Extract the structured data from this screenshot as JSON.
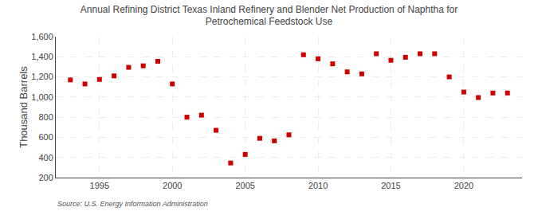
{
  "chart_data": {
    "type": "scatter",
    "title": "Annual Refining District Texas Inland Refinery and Blender Net Production of Naphtha for\nPetrochemical Feedstock Use",
    "ylabel": "Thousand Barrels",
    "source": "Source: U.S. Energy Information Administration",
    "x": [
      1993,
      1994,
      1995,
      1996,
      1997,
      1998,
      1999,
      2000,
      2001,
      2002,
      2003,
      2004,
      2005,
      2006,
      2007,
      2008,
      2009,
      2010,
      2011,
      2012,
      2013,
      2014,
      2015,
      2016,
      2017,
      2018,
      2019,
      2020,
      2021,
      2022,
      2023
    ],
    "values": [
      1170,
      1130,
      1175,
      1210,
      1295,
      1310,
      1355,
      1130,
      800,
      820,
      670,
      345,
      430,
      590,
      565,
      625,
      1420,
      1380,
      1330,
      1250,
      1230,
      1430,
      1365,
      1395,
      1430,
      1430,
      1200,
      1050,
      995,
      1040,
      1040
    ],
    "color": "#cc0000",
    "marker": "square",
    "xlim": [
      1992,
      2024
    ],
    "xticks": [
      1995,
      2000,
      2005,
      2010,
      2015,
      2020
    ],
    "ylim": [
      200,
      1600
    ],
    "yticks": [
      200,
      400,
      600,
      800,
      {
        "value": 1000,
        "label": "1,000"
      },
      {
        "value": 1200,
        "label": "1,200"
      },
      {
        "value": 1400,
        "label": "1,400"
      },
      {
        "value": 1600,
        "label": "1,600"
      }
    ],
    "grid": true
  }
}
